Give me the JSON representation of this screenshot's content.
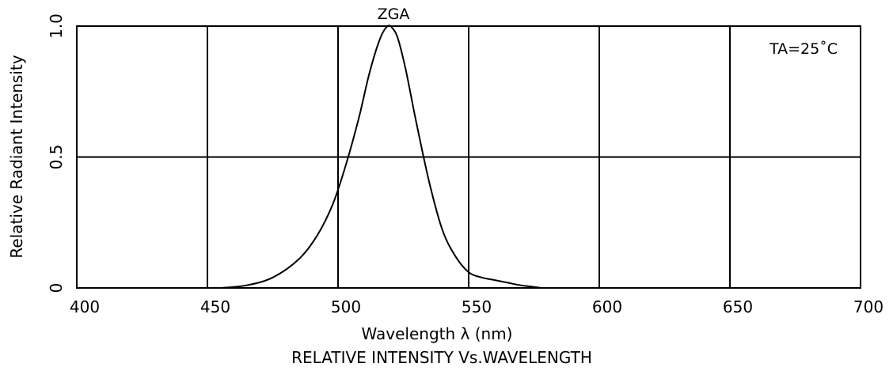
{
  "chart_data": {
    "type": "line",
    "title": "RELATIVE INTENSITY Vs.WAVELENGTH",
    "xlabel": "Wavelength λ (nm)",
    "ylabel": "Relative Radiant Intensity",
    "xlim": [
      400,
      700
    ],
    "ylim": [
      0,
      1.0
    ],
    "grid": true,
    "x_ticks": [
      "400",
      "450",
      "500",
      "550",
      "600",
      "650",
      "700"
    ],
    "y_ticks": [
      "0",
      "0.5",
      "1.0"
    ],
    "series": [
      {
        "name": "ZGA",
        "x": [
          455,
          465,
          475,
          485,
          492,
          498,
          503,
          508,
          512,
          516,
          519,
          521,
          523,
          526,
          530,
          535,
          540,
          545,
          550,
          555,
          560,
          565,
          570,
          575,
          578
        ],
        "y": [
          0.0,
          0.01,
          0.04,
          0.11,
          0.2,
          0.32,
          0.47,
          0.65,
          0.82,
          0.95,
          1.0,
          0.99,
          0.95,
          0.83,
          0.63,
          0.4,
          0.22,
          0.12,
          0.06,
          0.04,
          0.03,
          0.02,
          0.01,
          0.004,
          0.0
        ]
      }
    ],
    "annotations": [
      "TA=25˚C"
    ]
  }
}
